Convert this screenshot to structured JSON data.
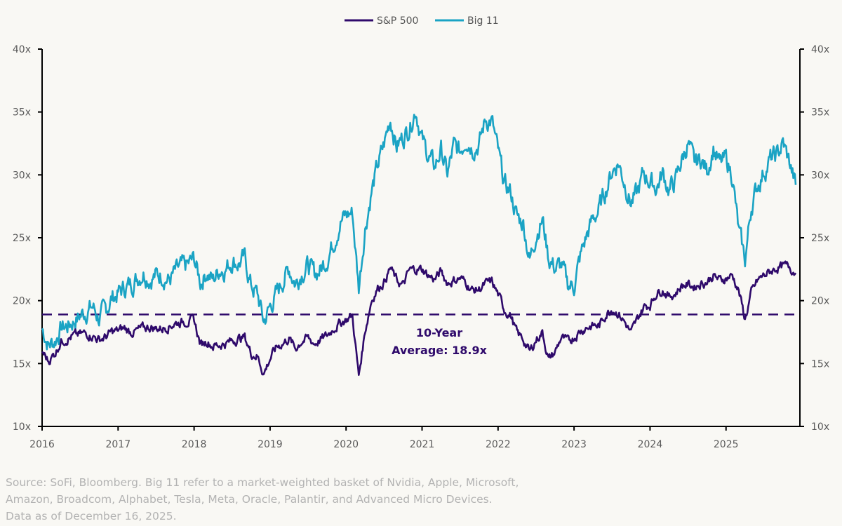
{
  "chart_data": {
    "type": "line",
    "title": "",
    "xlabel": "",
    "ylabel": "",
    "x_ticks": [
      "2016",
      "2017",
      "2018",
      "2019",
      "2020",
      "2021",
      "2022",
      "2023",
      "2024",
      "2025"
    ],
    "x_range": [
      2016.0,
      2026.0
    ],
    "ylim": [
      10,
      40
    ],
    "y_ticks": [
      10,
      15,
      20,
      25,
      30,
      35,
      40
    ],
    "y_tick_suffix": "x",
    "right_axis_mirror": true,
    "grid": false,
    "legend": {
      "position": "top-center",
      "entries": [
        "S&P 500",
        "Big 11"
      ]
    },
    "x_start": 2016.0,
    "x_step_months": 1,
    "series": [
      {
        "name": "S&P 500",
        "color": "#2f0a6b",
        "values": [
          16.0,
          15.2,
          15.8,
          16.8,
          17.0,
          17.2,
          17.3,
          17.4,
          17.2,
          16.9,
          17.1,
          17.5,
          17.6,
          17.8,
          17.5,
          17.6,
          17.8,
          17.9,
          17.8,
          17.8,
          18.0,
          18.2,
          18.3,
          18.4,
          18.4,
          16.5,
          16.8,
          16.4,
          16.5,
          16.6,
          16.8,
          17.0,
          17.1,
          15.8,
          15.6,
          14.2,
          15.4,
          16.3,
          16.6,
          17.0,
          16.2,
          16.8,
          17.0,
          16.6,
          16.9,
          17.2,
          17.8,
          18.2,
          18.5,
          18.8,
          14.0,
          17.6,
          20.0,
          21.0,
          21.5,
          22.6,
          21.6,
          21.2,
          22.4,
          22.5,
          22.5,
          22.0,
          21.7,
          22.3,
          21.4,
          21.6,
          21.8,
          21.4,
          20.8,
          20.9,
          21.3,
          21.5,
          20.5,
          19.3,
          18.8,
          17.4,
          16.9,
          15.9,
          16.9,
          17.5,
          15.3,
          15.9,
          17.1,
          16.7,
          17.1,
          17.6,
          17.9,
          18.0,
          18.0,
          18.9,
          19.4,
          19.0,
          18.3,
          17.4,
          18.5,
          19.5,
          19.7,
          20.6,
          20.9,
          20.3,
          20.6,
          21.2,
          21.3,
          21.1,
          21.4,
          21.5,
          22.0,
          21.6,
          21.8,
          22.0,
          20.8,
          18.5,
          20.6,
          21.6,
          22.0,
          22.3,
          22.6,
          22.7,
          22.7,
          22.2
        ]
      },
      {
        "name": "Big 11",
        "color": "#1aa3c4",
        "values": [
          17.8,
          16.5,
          16.8,
          17.8,
          18.0,
          18.4,
          18.8,
          19.2,
          19.5,
          18.6,
          19.2,
          20.2,
          20.6,
          21.0,
          21.3,
          21.8,
          22.3,
          21.8,
          22.0,
          22.1,
          21.6,
          22.2,
          22.6,
          22.8,
          23.3,
          21.5,
          22.3,
          21.6,
          22.5,
          22.6,
          23.2,
          23.0,
          23.3,
          21.2,
          20.5,
          18.3,
          19.5,
          20.5,
          21.6,
          22.6,
          21.4,
          22.3,
          22.8,
          22.1,
          22.5,
          23.4,
          24.6,
          26.2,
          26.8,
          27.0,
          21.0,
          25.8,
          28.6,
          30.7,
          32.4,
          34.5,
          32.3,
          33.0,
          33.8,
          35.3,
          32.8,
          31.5,
          30.6,
          32.0,
          30.0,
          32.2,
          31.8,
          33.0,
          32.2,
          32.4,
          34.4,
          34.3,
          31.8,
          29.2,
          28.6,
          26.6,
          26.2,
          23.2,
          25.3,
          26.5,
          23.4,
          22.6,
          22.8,
          21.3,
          21.2,
          23.5,
          25.2,
          26.5,
          27.3,
          28.8,
          30.3,
          31.0,
          29.4,
          27.8,
          28.5,
          30.1,
          29.5,
          29.0,
          30.1,
          28.8,
          29.5,
          31.2,
          32.5,
          30.8,
          31.3,
          30.3,
          32.2,
          30.8,
          31.2,
          30.0,
          25.5,
          23.2,
          27.5,
          29.2,
          30.3,
          31.2,
          31.5,
          32.5,
          31.0,
          29.2
        ]
      }
    ],
    "reference_line": {
      "value": 18.9,
      "style": "dashed",
      "color": "#2f0a6b",
      "label_line1": "10-Year",
      "label_line2": "Average: 18.9x"
    }
  },
  "legend": {
    "sp500_label": "S&P 500",
    "big11_label": "Big 11"
  },
  "annotation": {
    "line1": "10-Year",
    "line2": "Average: 18.9x"
  },
  "footnote": {
    "line1": "Source: SoFi, Bloomberg. Big 11 refer to a market-weighted basket of Nvidia, Apple, Microsoft,",
    "line2": "Amazon, Broadcom, Alphabet, Tesla, Meta, Oracle, Palantir, and Advanced Micro Devices.",
    "line3": "Data as of December 16, 2025."
  }
}
